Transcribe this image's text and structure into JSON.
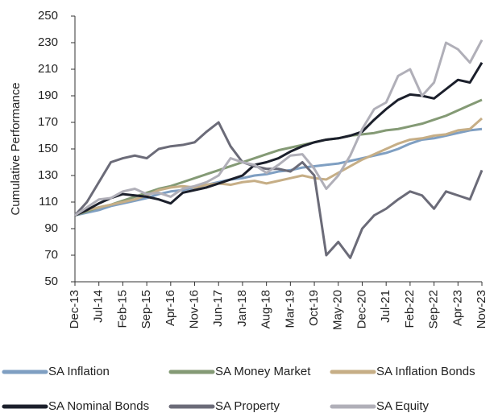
{
  "chart_data": {
    "type": "line",
    "ylabel": "Cumulative Performance",
    "categories": [
      "Dec-13",
      null,
      "Jul-14",
      null,
      "Feb-15",
      null,
      "Sep-15",
      null,
      "Apr-16",
      null,
      "Nov-16",
      null,
      "Jun-17",
      null,
      "Jan-18",
      null,
      "Aug-18",
      null,
      "Mar-19",
      null,
      "Oct-19",
      null,
      "May-20",
      null,
      "Dec-20",
      null,
      "Jul-21",
      null,
      "Feb-22",
      null,
      "Sep-22",
      null,
      "Apr-23",
      null,
      "Nov-23"
    ],
    "ylim": [
      50,
      250
    ],
    "yticks": [
      50,
      70,
      90,
      110,
      130,
      150,
      170,
      190,
      210,
      230,
      250
    ],
    "grid": false,
    "legend": "bottom",
    "series": [
      {
        "name": "SA Inflation",
        "color": "#7f9fc2",
        "values": [
          100,
          102,
          104,
          107,
          109,
          111,
          113,
          116,
          118,
          119,
          121,
          123,
          125,
          127,
          128,
          130,
          131,
          133,
          134,
          136,
          137,
          138,
          139,
          141,
          143,
          145,
          147,
          150,
          154,
          157,
          158,
          160,
          162,
          164,
          165
        ]
      },
      {
        "name": "SA Money Market",
        "color": "#849a75",
        "values": [
          100,
          103,
          106,
          108,
          111,
          114,
          117,
          120,
          122,
          125,
          128,
          131,
          134,
          137,
          140,
          143,
          146,
          149,
          151,
          153,
          155,
          157,
          158,
          160,
          161,
          162,
          164,
          165,
          167,
          169,
          172,
          175,
          179,
          183,
          187
        ]
      },
      {
        "name": "SA Inflation Bonds",
        "color": "#c6ae86",
        "values": [
          100,
          104,
          106,
          108,
          110,
          112,
          115,
          119,
          121,
          122,
          121,
          123,
          124,
          123,
          125,
          126,
          124,
          126,
          128,
          130,
          128,
          127,
          132,
          137,
          142,
          146,
          150,
          154,
          157,
          158,
          160,
          161,
          164,
          165,
          173
        ]
      },
      {
        "name": "SA Nominal Bonds",
        "color": "#1b1f2b",
        "values": [
          100,
          104,
          109,
          113,
          116,
          115,
          114,
          112,
          109,
          117,
          119,
          121,
          124,
          127,
          130,
          138,
          140,
          143,
          148,
          152,
          155,
          157,
          158,
          160,
          163,
          172,
          180,
          187,
          191,
          190,
          188,
          195,
          202,
          200,
          215
        ]
      },
      {
        "name": "SA Property",
        "color": "#6b6b78",
        "values": [
          100,
          110,
          125,
          140,
          143,
          145,
          143,
          150,
          152,
          153,
          155,
          163,
          170,
          152,
          140,
          137,
          135,
          135,
          133,
          140,
          130,
          70,
          80,
          68,
          90,
          100,
          105,
          112,
          118,
          115,
          105,
          118,
          115,
          112,
          134
        ]
      },
      {
        "name": "SA Equity",
        "color": "#b0afb8",
        "values": [
          100,
          106,
          112,
          113,
          118,
          120,
          116,
          117,
          114,
          120,
          122,
          125,
          130,
          143,
          140,
          138,
          132,
          138,
          145,
          146,
          135,
          120,
          130,
          145,
          165,
          180,
          185,
          205,
          210,
          190,
          200,
          230,
          225,
          215,
          232
        ]
      }
    ]
  }
}
